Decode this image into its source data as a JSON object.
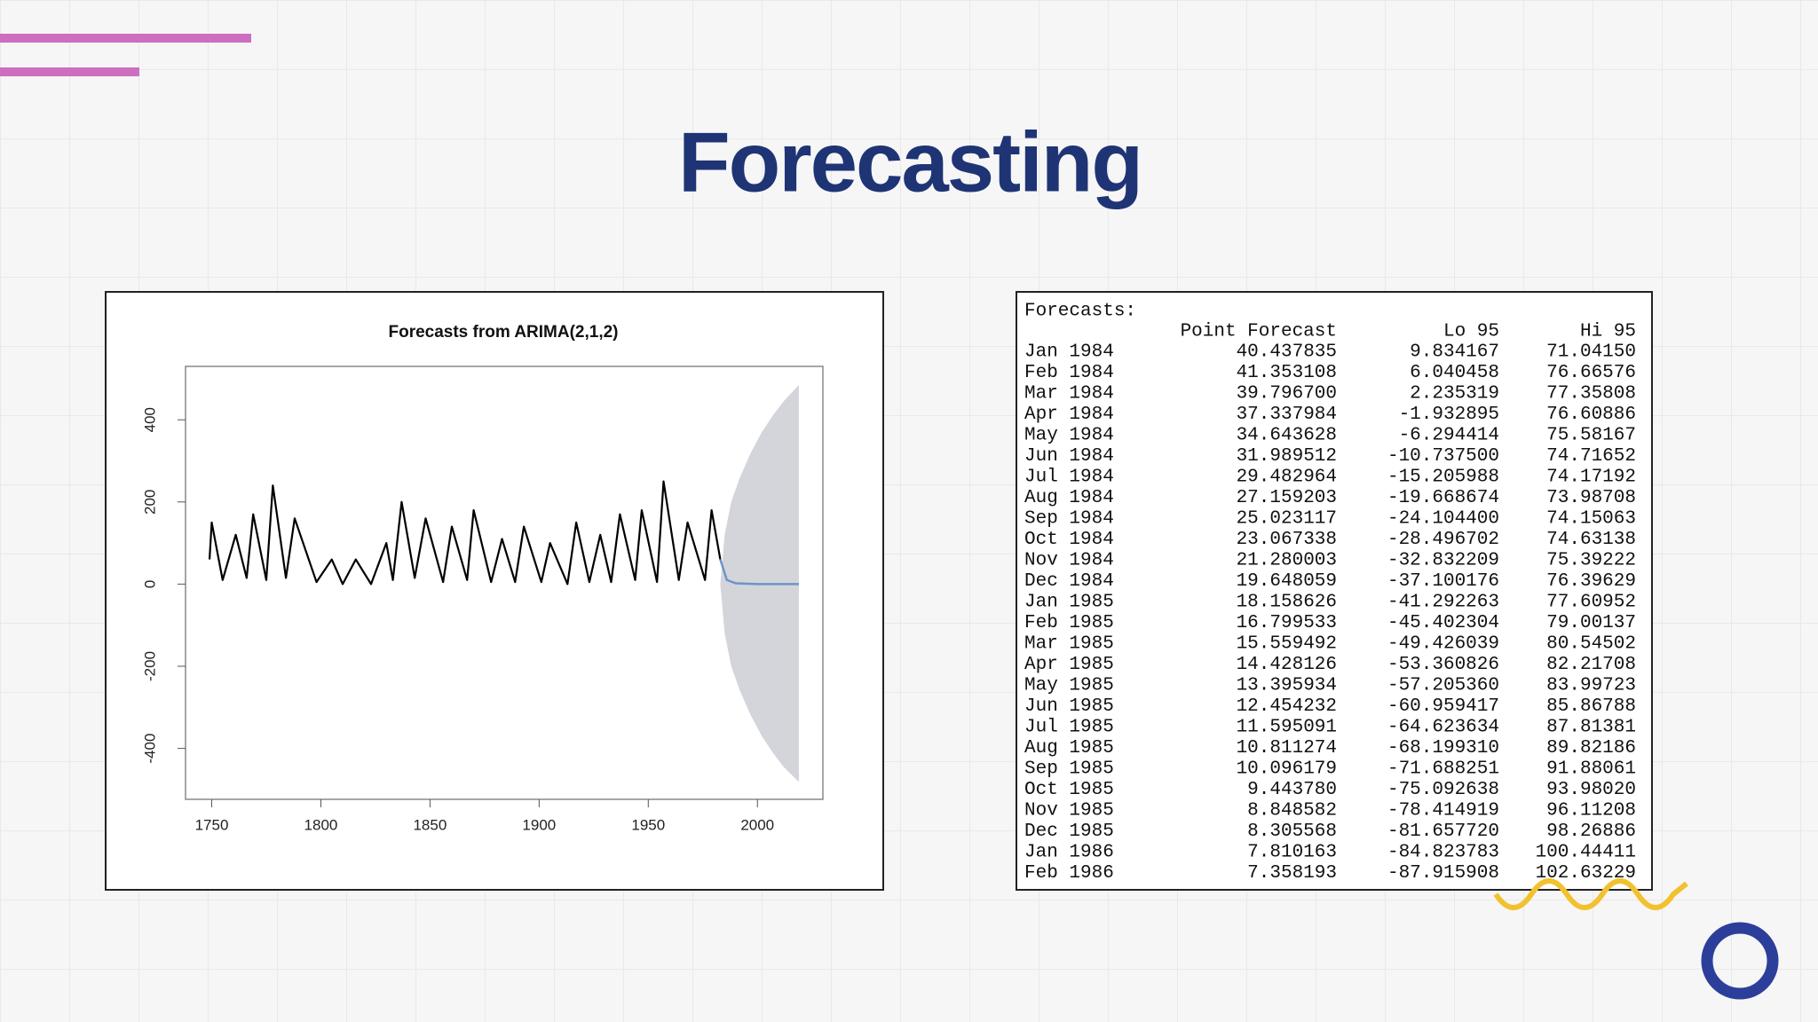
{
  "header": {
    "title": "Forecasting"
  },
  "chart_data": {
    "type": "line",
    "title": "Forecasts from ARIMA(2,1,2)",
    "xlim": [
      1738,
      2030
    ],
    "xticks": [
      1750,
      1800,
      1850,
      1900,
      1950,
      2000
    ],
    "ylim": [
      -524,
      530
    ],
    "yticks": [
      -400,
      -200,
      0,
      200,
      400
    ],
    "series": [
      {
        "name": "history",
        "color": "#000000",
        "x": [
          1749,
          1750,
          1755,
          1761,
          1766,
          1769,
          1775,
          1778,
          1784,
          1788,
          1798,
          1805,
          1810,
          1816,
          1823,
          1830,
          1833,
          1837,
          1843,
          1848,
          1856,
          1860,
          1867,
          1870,
          1878,
          1883,
          1889,
          1893,
          1901,
          1905,
          1913,
          1917,
          1923,
          1928,
          1933,
          1937,
          1944,
          1947,
          1954,
          1957,
          1964,
          1968,
          1976,
          1979,
          1983
        ],
        "values": [
          60,
          150,
          10,
          120,
          15,
          170,
          10,
          240,
          15,
          160,
          5,
          60,
          0,
          60,
          0,
          100,
          10,
          200,
          15,
          160,
          5,
          140,
          10,
          180,
          5,
          110,
          5,
          140,
          5,
          100,
          0,
          150,
          5,
          120,
          5,
          170,
          10,
          180,
          5,
          250,
          10,
          150,
          10,
          180,
          60
        ]
      },
      {
        "name": "forecast",
        "color": "#6f93c8",
        "x": [
          1983,
          1986,
          1990,
          2000,
          2010,
          2019
        ],
        "values": [
          60,
          10,
          2,
          0,
          0,
          0
        ]
      }
    ],
    "band": {
      "color": "#d3d5db",
      "x": [
        1983,
        1985,
        1988,
        1992,
        1997,
        2002,
        2007,
        2012,
        2019
      ],
      "hi": [
        0,
        120,
        200,
        260,
        320,
        370,
        410,
        445,
        485
      ],
      "lo": [
        0,
        -120,
        -200,
        -260,
        -320,
        -370,
        -410,
        -445,
        -482
      ]
    }
  },
  "table": {
    "caption": "Forecasts:",
    "columns": [
      "Point Forecast",
      "Lo 95",
      "Hi 95"
    ],
    "rows": [
      [
        "Jan 1984",
        "40.437835",
        "9.834167",
        "71.04150"
      ],
      [
        "Feb 1984",
        "41.353108",
        "6.040458",
        "76.66576"
      ],
      [
        "Mar 1984",
        "39.796700",
        "2.235319",
        "77.35808"
      ],
      [
        "Apr 1984",
        "37.337984",
        "-1.932895",
        "76.60886"
      ],
      [
        "May 1984",
        "34.643628",
        "-6.294414",
        "75.58167"
      ],
      [
        "Jun 1984",
        "31.989512",
        "-10.737500",
        "74.71652"
      ],
      [
        "Jul 1984",
        "29.482964",
        "-15.205988",
        "74.17192"
      ],
      [
        "Aug 1984",
        "27.159203",
        "-19.668674",
        "73.98708"
      ],
      [
        "Sep 1984",
        "25.023117",
        "-24.104400",
        "74.15063"
      ],
      [
        "Oct 1984",
        "23.067338",
        "-28.496702",
        "74.63138"
      ],
      [
        "Nov 1984",
        "21.280003",
        "-32.832209",
        "75.39222"
      ],
      [
        "Dec 1984",
        "19.648059",
        "-37.100176",
        "76.39629"
      ],
      [
        "Jan 1985",
        "18.158626",
        "-41.292263",
        "77.60952"
      ],
      [
        "Feb 1985",
        "16.799533",
        "-45.402304",
        "79.00137"
      ],
      [
        "Mar 1985",
        "15.559492",
        "-49.426039",
        "80.54502"
      ],
      [
        "Apr 1985",
        "14.428126",
        "-53.360826",
        "82.21708"
      ],
      [
        "May 1985",
        "13.395934",
        "-57.205360",
        "83.99723"
      ],
      [
        "Jun 1985",
        "12.454232",
        "-60.959417",
        "85.86788"
      ],
      [
        "Jul 1985",
        "11.595091",
        "-64.623634",
        "87.81381"
      ],
      [
        "Aug 1985",
        "10.811274",
        "-68.199310",
        "89.82186"
      ],
      [
        "Sep 1985",
        "10.096179",
        "-71.688251",
        "91.88061"
      ],
      [
        "Oct 1985",
        "9.443780",
        "-75.092638",
        "93.98020"
      ],
      [
        "Nov 1985",
        "8.848582",
        "-78.414919",
        "96.11208"
      ],
      [
        "Dec 1985",
        "8.305568",
        "-81.657720",
        "98.26886"
      ],
      [
        "Jan 1986",
        "7.810163",
        "-84.823783",
        "100.44411"
      ],
      [
        "Feb 1986",
        "7.358193",
        "-87.915908",
        "102.63229"
      ]
    ]
  }
}
